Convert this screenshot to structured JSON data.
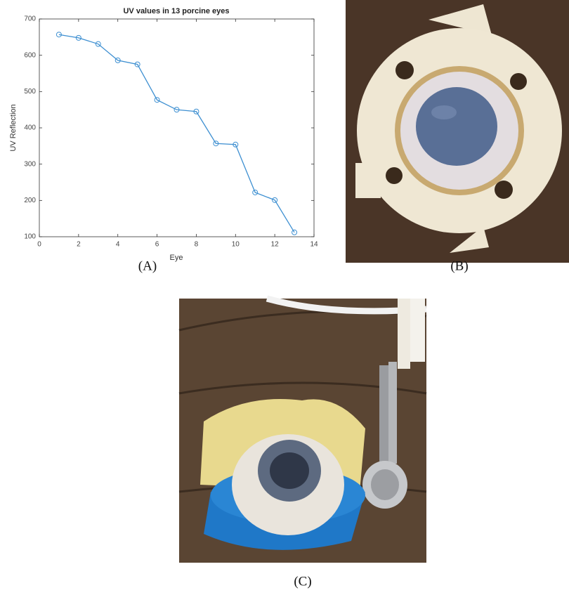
{
  "chart_data": {
    "type": "line",
    "title": "UV values in 13 porcine eyes",
    "x_label": "Eye",
    "y_label": "UV Reflection",
    "x": [
      1,
      2,
      3,
      4,
      5,
      6,
      7,
      8,
      9,
      10,
      11,
      12,
      13
    ],
    "values": [
      657,
      648,
      631,
      586,
      575,
      477,
      450,
      445,
      357,
      354,
      222,
      201,
      112
    ],
    "color": "#3d8fd1",
    "xlim": [
      0,
      14
    ],
    "xticks": [
      0,
      2,
      4,
      6,
      8,
      10,
      12,
      14
    ],
    "ylim": [
      100,
      700
    ],
    "yticks": [
      100,
      200,
      300,
      400,
      500,
      600,
      700
    ],
    "grid": false,
    "markers": true
  },
  "panel_labels": [
    "(A)",
    "(B)",
    "(C)"
  ]
}
